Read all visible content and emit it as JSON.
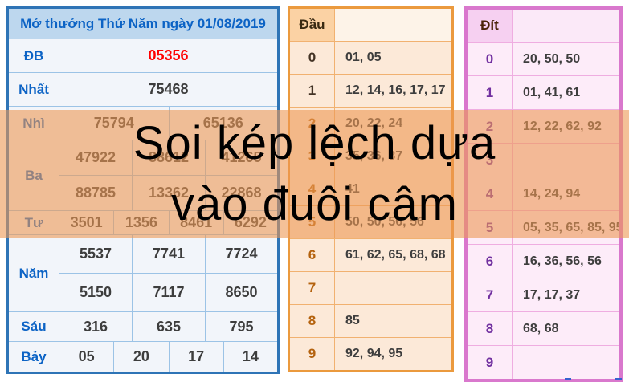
{
  "banner": {
    "line1": "Soi kép lệch dựa",
    "line2": "vào đuôi câm"
  },
  "results_table": {
    "title": "Mở thưởng Thứ Năm ngày 01/08/2019",
    "rows": [
      {
        "key": "db",
        "label": "ĐB",
        "special": true,
        "lines": [
          [
            "05356"
          ]
        ]
      },
      {
        "key": "nhat",
        "label": "Nhất",
        "special": false,
        "lines": [
          [
            "75468"
          ]
        ]
      },
      {
        "key": "nhi",
        "label": "Nhì",
        "special": false,
        "lines": [
          [
            "75794",
            "65136"
          ]
        ]
      },
      {
        "key": "ba",
        "label": "Ba",
        "special": false,
        "lines": [
          [
            "47922",
            "88612",
            "41265"
          ],
          [
            "88785",
            "13362",
            "22868"
          ]
        ]
      },
      {
        "key": "tu",
        "label": "Tư",
        "special": false,
        "lines": [
          [
            "3501",
            "1356",
            "8461",
            "6292"
          ]
        ]
      },
      {
        "key": "nam",
        "label": "Năm",
        "special": false,
        "lines": [
          [
            "5537",
            "7741",
            "7724"
          ],
          [
            "5150",
            "7117",
            "8650"
          ]
        ]
      },
      {
        "key": "sau",
        "label": "Sáu",
        "special": false,
        "lines": [
          [
            "316",
            "635",
            "795"
          ]
        ]
      },
      {
        "key": "bay",
        "label": "Bảy",
        "special": false,
        "lines": [
          [
            "05",
            "20",
            "17",
            "14"
          ]
        ]
      }
    ]
  },
  "dau_table": {
    "title": "Đầu",
    "rows": [
      {
        "digit": "0",
        "values": "01, 05",
        "digit_color": "#433325"
      },
      {
        "digit": "1",
        "values": "12, 14, 16, 17, 17",
        "digit_color": "#433325"
      },
      {
        "digit": "2",
        "values": "20, 22, 24",
        "digit_color": "#b4620e"
      },
      {
        "digit": "3",
        "values": "35, 36, 37",
        "digit_color": "#b4620e"
      },
      {
        "digit": "4",
        "values": "41",
        "digit_color": "#b4620e"
      },
      {
        "digit": "5",
        "values": "50, 50, 56, 56",
        "digit_color": "#b4620e"
      },
      {
        "digit": "6",
        "values": "61, 62, 65, 68, 68",
        "digit_color": "#b4620e"
      },
      {
        "digit": "7",
        "values": "",
        "digit_color": "#b4620e"
      },
      {
        "digit": "8",
        "values": "85",
        "digit_color": "#b4620e"
      },
      {
        "digit": "9",
        "values": "92, 94, 95",
        "digit_color": "#b4620e"
      }
    ]
  },
  "dit_table": {
    "title": "Đít",
    "rows": [
      {
        "digit": "0",
        "values": "20, 50, 50"
      },
      {
        "digit": "1",
        "values": "01, 41, 61"
      },
      {
        "digit": "2",
        "values": "12, 22, 62, 92"
      },
      {
        "digit": "3",
        "values": ""
      },
      {
        "digit": "4",
        "values": "14, 24, 94"
      },
      {
        "digit": "5",
        "values": "05, 35, 65, 85, 95"
      },
      {
        "digit": "6",
        "values": "16, 36, 56, 56"
      },
      {
        "digit": "7",
        "values": "17, 17, 37"
      },
      {
        "digit": "8",
        "values": "68, 68"
      },
      {
        "digit": "9",
        "values": ""
      }
    ]
  },
  "colors": {
    "results_border": "#2e74b6",
    "results_header_bg": "#bdd7ee",
    "results_label_text": "#0c63c5",
    "special_prize_text": "#ff0000",
    "number_text": "#3d3d3d",
    "dau_border": "#eb9a3e",
    "dau_header_bg": "#fbd2a4",
    "dau_row_bg": "#fce9d8",
    "dit_border": "#d978cd",
    "dit_header_bg": "#f6d0f1",
    "dit_digit_text": "#7130a0",
    "banner_overlay": "rgba(237,152,84,0.60)",
    "banner_text": "#000000"
  }
}
